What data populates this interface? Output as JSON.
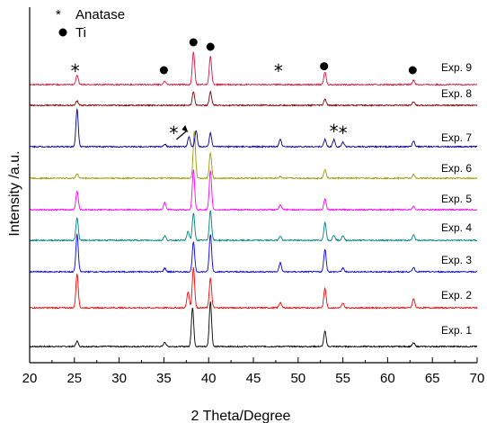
{
  "chart_data": {
    "type": "line",
    "xlabel": "2 Theta/Degree",
    "ylabel": "Intensity /a.u.",
    "xlim": [
      20,
      70
    ],
    "xticks": [
      "20",
      "25",
      "30",
      "35",
      "40",
      "45",
      "50",
      "55",
      "60",
      "65",
      "70"
    ],
    "legend": [
      {
        "symbol": "*",
        "label": "Anatase"
      },
      {
        "symbol": "●",
        "label": "Ti"
      }
    ],
    "series": [
      {
        "name": "Exp. 1",
        "color": "#000000",
        "peaks": [
          [
            25.3,
            6
          ],
          [
            35.1,
            5
          ],
          [
            38.2,
            43
          ],
          [
            40.2,
            50
          ],
          [
            53.0,
            17
          ],
          [
            62.9,
            4
          ]
        ]
      },
      {
        "name": "Exp. 2",
        "color": "#ff0000",
        "peaks": [
          [
            25.3,
            38
          ],
          [
            37.7,
            18
          ],
          [
            38.3,
            45
          ],
          [
            40.2,
            33
          ],
          [
            48.0,
            6
          ],
          [
            53.0,
            22
          ],
          [
            55.0,
            5
          ],
          [
            62.9,
            10
          ]
        ]
      },
      {
        "name": "Exp. 3",
        "color": "#0000ff",
        "peaks": [
          [
            25.3,
            42
          ],
          [
            35.1,
            4
          ],
          [
            38.3,
            33
          ],
          [
            40.2,
            42
          ],
          [
            48.0,
            10
          ],
          [
            53.0,
            25
          ],
          [
            55.0,
            4
          ],
          [
            62.9,
            5
          ]
        ]
      },
      {
        "name": "Exp. 4",
        "color": "#008080",
        "peaks": [
          [
            25.3,
            25
          ],
          [
            35.1,
            5
          ],
          [
            37.7,
            10
          ],
          [
            38.3,
            30
          ],
          [
            40.2,
            33
          ],
          [
            48.0,
            5
          ],
          [
            53.0,
            20
          ],
          [
            54.0,
            6
          ],
          [
            55.0,
            5
          ],
          [
            62.9,
            6
          ]
        ]
      },
      {
        "name": "Exp. 5",
        "color": "#ff00ff",
        "peaks": [
          [
            25.3,
            21
          ],
          [
            35.1,
            8
          ],
          [
            38.3,
            44
          ],
          [
            40.2,
            43
          ],
          [
            48.0,
            5
          ],
          [
            53.0,
            12
          ],
          [
            62.9,
            4
          ]
        ]
      },
      {
        "name": "Exp. 6",
        "color": "#999900",
        "peaks": [
          [
            25.3,
            5
          ],
          [
            38.4,
            52
          ],
          [
            40.2,
            28
          ],
          [
            48.0,
            2
          ],
          [
            53.0,
            10
          ],
          [
            62.9,
            4
          ]
        ]
      },
      {
        "name": "Exp. 7",
        "color": "#00008b",
        "peaks": [
          [
            25.3,
            42
          ],
          [
            35.1,
            3
          ],
          [
            37.8,
            11
          ],
          [
            38.6,
            18
          ],
          [
            40.2,
            15
          ],
          [
            48.0,
            8
          ],
          [
            53.0,
            8
          ],
          [
            54.0,
            8
          ],
          [
            55.0,
            5
          ],
          [
            62.9,
            6
          ]
        ]
      },
      {
        "name": "Exp. 8",
        "color": "#800000",
        "peaks": [
          [
            25.3,
            5
          ],
          [
            38.3,
            15
          ],
          [
            40.2,
            15
          ],
          [
            53.0,
            7
          ],
          [
            62.9,
            4
          ]
        ]
      },
      {
        "name": "Exp. 9",
        "color": "#dc143c",
        "peaks": [
          [
            25.3,
            11
          ],
          [
            35.1,
            4
          ],
          [
            38.3,
            37
          ],
          [
            40.2,
            32
          ],
          [
            53.0,
            14
          ],
          [
            62.9,
            5
          ]
        ]
      }
    ],
    "annotations": [
      {
        "symbol": "*",
        "x": 25.1,
        "trace": "Exp. 9"
      },
      {
        "symbol": "●",
        "x": 35.0,
        "trace": "Exp. 9"
      },
      {
        "symbol": "●",
        "x": 38.3,
        "trace": "Exp. 9"
      },
      {
        "symbol": "●",
        "x": 40.2,
        "trace": "Exp. 9"
      },
      {
        "symbol": "*",
        "x": 47.8,
        "trace": "Exp. 9"
      },
      {
        "symbol": "●",
        "x": 52.9,
        "trace": "Exp. 9"
      },
      {
        "symbol": "●",
        "x": 62.8,
        "trace": "Exp. 9"
      },
      {
        "symbol": "*",
        "x": 36.1,
        "trace": "Exp. 7",
        "arrow_to": 37.7
      },
      {
        "symbol": "*",
        "x": 54.0,
        "trace": "Exp. 7"
      },
      {
        "symbol": "*",
        "x": 55.0,
        "trace": "Exp. 7"
      }
    ]
  }
}
